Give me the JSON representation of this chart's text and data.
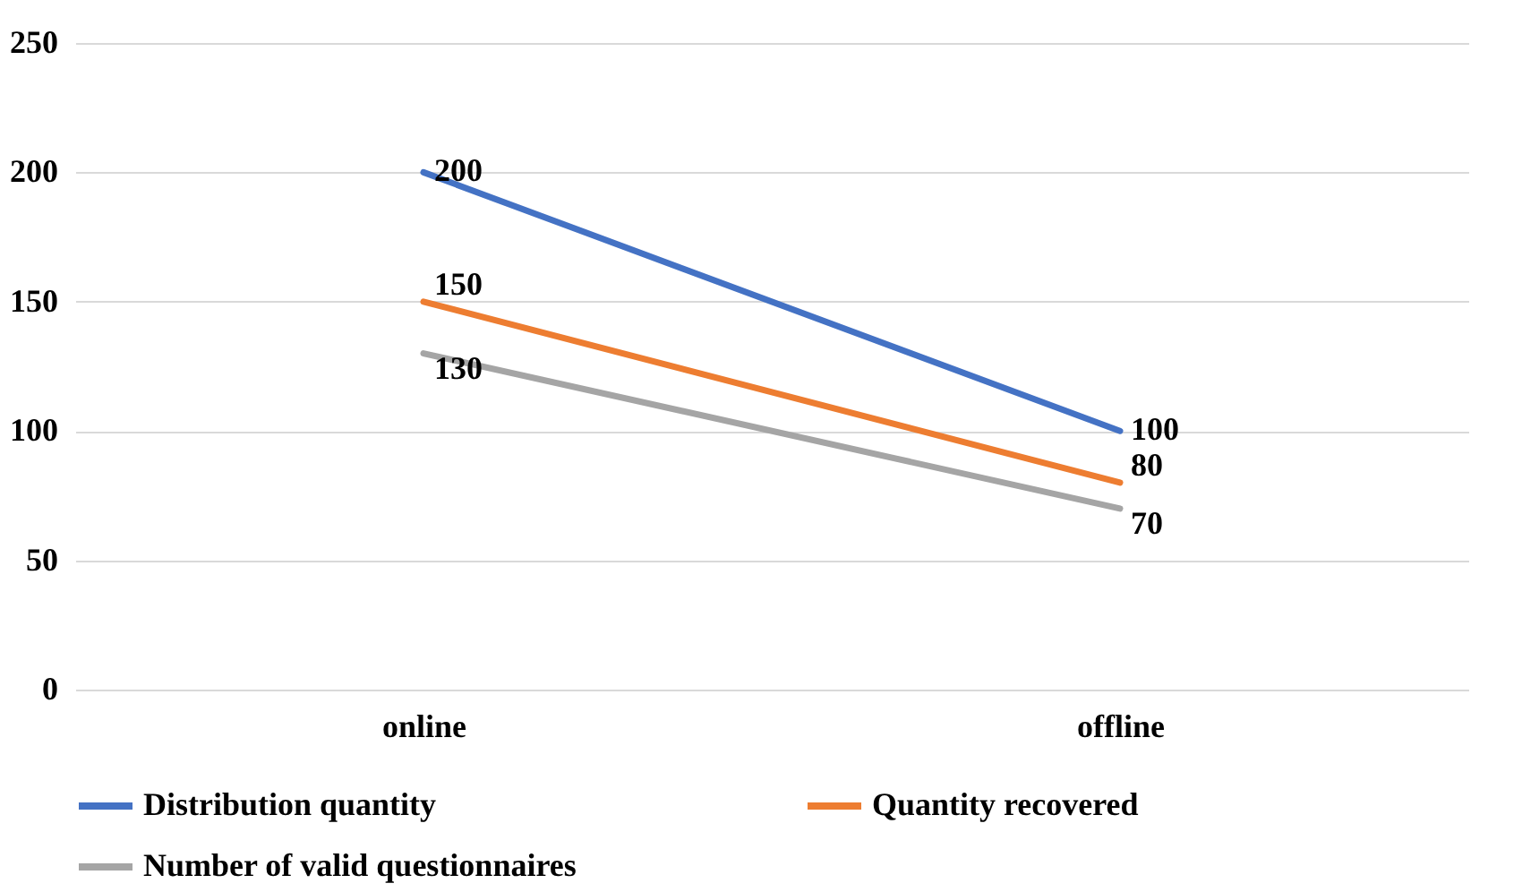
{
  "chart_data": {
    "type": "line",
    "categories": [
      "online",
      "offline"
    ],
    "series": [
      {
        "name": "Distribution quantity",
        "color": "#4472c4",
        "values": [
          200,
          100
        ]
      },
      {
        "name": "Quantity recovered",
        "color": "#ed7d31",
        "values": [
          150,
          80
        ]
      },
      {
        "name": "Number of valid questionnaires",
        "color": "#a5a5a5",
        "values": [
          130,
          70
        ]
      }
    ],
    "ylim": [
      0,
      250
    ],
    "yticks": [
      0,
      50,
      100,
      150,
      200,
      250
    ],
    "grid": "y",
    "legend": "bottom",
    "data_labels": true,
    "marker": "none",
    "line_style": "solid"
  }
}
